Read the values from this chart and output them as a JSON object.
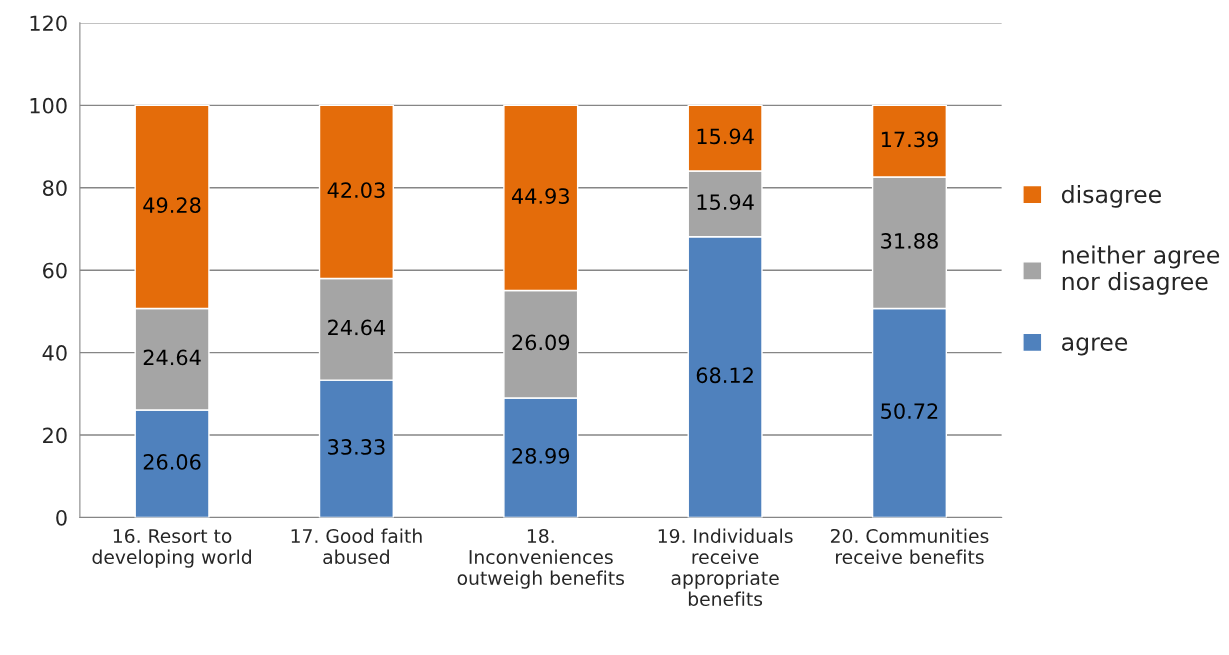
{
  "chart_data": {
    "type": "bar",
    "stacked": true,
    "categories": [
      "16. Resort to\ndeveloping world",
      "17. Good faith\nabused",
      "18.\nInconveniences\noutweigh benefits",
      "19. Individuals\nreceive\nappropriate\nbenefits",
      "20. Communities\nreceive benefits"
    ],
    "series": [
      {
        "name": "agree",
        "color": "#4f81bd",
        "values": [
          26.06,
          33.33,
          28.99,
          68.12,
          50.72
        ]
      },
      {
        "name": "neither agree\nnor disagree",
        "color": "#a5a5a5",
        "values": [
          24.64,
          24.64,
          26.09,
          15.94,
          31.88
        ]
      },
      {
        "name": "disagree",
        "color": "#e46c0a",
        "values": [
          49.28,
          42.03,
          44.93,
          15.94,
          17.39
        ]
      }
    ],
    "ylim": [
      0,
      120
    ],
    "yticks": [
      0,
      20,
      40,
      60,
      80,
      100,
      120
    ],
    "grid": "y",
    "legend": "right",
    "data_labels": true
  }
}
